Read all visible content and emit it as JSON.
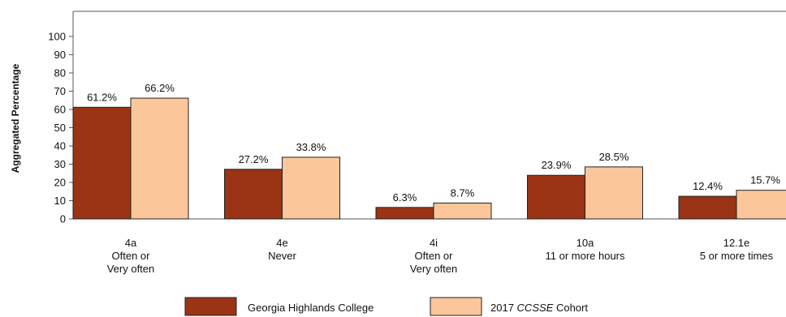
{
  "chart_data": {
    "type": "bar",
    "title": "",
    "xlabel": "",
    "ylabel": "Aggregated Percentage",
    "ylim": [
      0,
      100
    ],
    "yticks": [
      0,
      10,
      20,
      30,
      40,
      50,
      60,
      70,
      80,
      90,
      100
    ],
    "grid": false,
    "legend_position": "bottom",
    "categories": [
      {
        "lines": [
          "4a",
          "Often or",
          "Very often"
        ]
      },
      {
        "lines": [
          "4e",
          "Never"
        ]
      },
      {
        "lines": [
          "4i",
          "Often or",
          "Very often"
        ]
      },
      {
        "lines": [
          "10a",
          "11 or more hours"
        ]
      },
      {
        "lines": [
          "12.1e",
          "5 or more times"
        ]
      }
    ],
    "series": [
      {
        "name": "Georgia Highlands College",
        "color": "#9b3315",
        "values": [
          61.2,
          27.2,
          6.3,
          23.9,
          12.4
        ],
        "labels": [
          "61.2%",
          "27.2%",
          "6.3%",
          "23.9%",
          "12.4%"
        ]
      },
      {
        "name": "2017 CCSSE Cohort",
        "name_plain": "2017 ",
        "name_italic": "CCSSE",
        "name_rest": " Cohort",
        "color": "#fbc79a",
        "values": [
          66.2,
          33.8,
          8.7,
          28.5,
          15.7
        ],
        "labels": [
          "66.2%",
          "33.8%",
          "8.7%",
          "28.5%",
          "15.7%"
        ]
      }
    ]
  }
}
